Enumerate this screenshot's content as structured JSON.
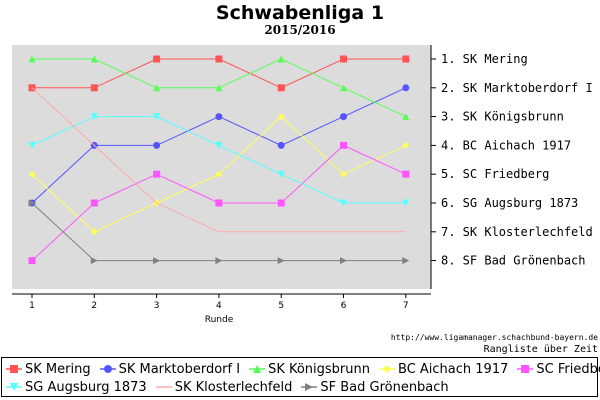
{
  "chart_data": {
    "type": "line",
    "title": "Schwabenliga 1",
    "subtitle": "2015/2016",
    "xlabel": "Runde",
    "x": [
      1,
      2,
      3,
      4,
      5,
      6,
      7
    ],
    "ylim": [
      1,
      8
    ],
    "y_inverted": true,
    "grid": false,
    "legend_position": "bottom",
    "series": [
      {
        "name": "SK Mering",
        "color": "#ff5555",
        "marker": "square",
        "values": [
          2,
          2,
          1,
          1,
          2,
          1,
          1
        ]
      },
      {
        "name": "SK Marktoberdorf I",
        "color": "#5555ff",
        "marker": "circle",
        "values": [
          6,
          4,
          4,
          3,
          4,
          3,
          2
        ]
      },
      {
        "name": "SK Königsbrunn",
        "color": "#55ff55",
        "marker": "triangle-up",
        "values": [
          1,
          1,
          2,
          2,
          1,
          2,
          3
        ]
      },
      {
        "name": "BC Aichach 1917",
        "color": "#ffff55",
        "marker": "diamond",
        "values": [
          5,
          7,
          6,
          5,
          3,
          5,
          4
        ]
      },
      {
        "name": "SC Friedberg",
        "color": "#ff55ff",
        "marker": "square",
        "values": [
          8,
          6,
          5,
          6,
          6,
          4,
          5
        ]
      },
      {
        "name": "SG Augsburg 1873",
        "color": "#55ffff",
        "marker": "triangle-down",
        "values": [
          4,
          3,
          3,
          4,
          5,
          6,
          6
        ]
      },
      {
        "name": "SK Klosterlechfeld",
        "color": "#ffaaaa",
        "marker": "none",
        "values": [
          2,
          4,
          6,
          7,
          7,
          7,
          7
        ]
      },
      {
        "name": "SF Bad Grönenbach",
        "color": "#808080",
        "marker": "triangle-right",
        "values": [
          6,
          8,
          8,
          8,
          8,
          8,
          8
        ]
      }
    ],
    "final_ranking": [
      "1. SK Mering",
      "2. SK Marktoberdorf I",
      "3. SK Königsbrunn",
      "4. BC Aichach 1917",
      "5. SC Friedberg",
      "6. SG Augsburg 1873",
      "7. SK Klosterlechfeld",
      "8. SF Bad Grönenbach"
    ]
  },
  "source_url": "http://www.ligamanager.schachbund-bayern.de",
  "caption": "Rangliste über Zeit"
}
